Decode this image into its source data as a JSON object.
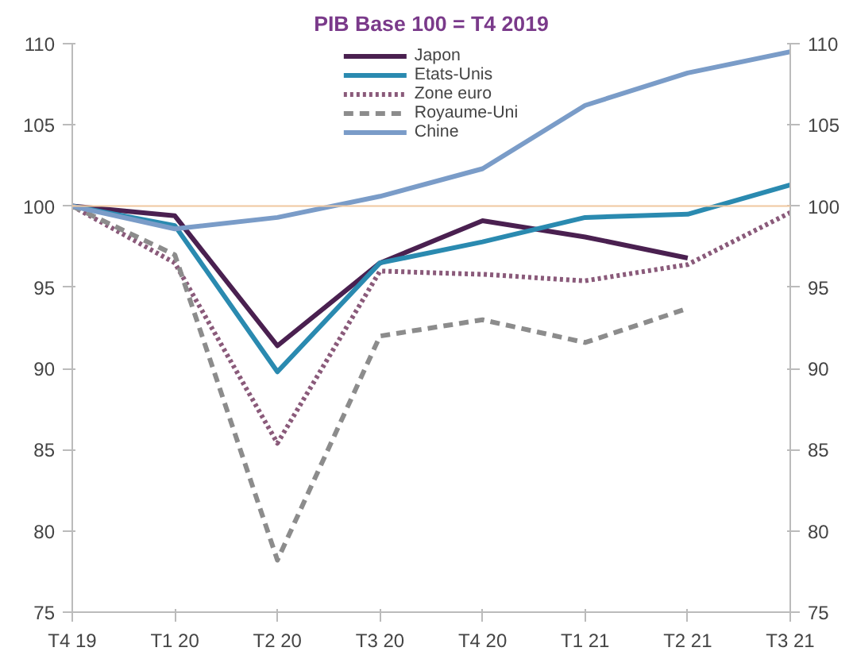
{
  "chart_data": {
    "type": "line",
    "title": "PIB Base 100 = T4 2019",
    "categories": [
      "T4 19",
      "T1 20",
      "T2 20",
      "T3 20",
      "T4 20",
      "T1 21",
      "T2 21",
      "T3 21"
    ],
    "series": [
      {
        "name": "Japon",
        "color": "#4a2050",
        "line_style": "solid",
        "values": [
          100,
          99.4,
          91.4,
          96.5,
          99.1,
          98.1,
          96.8,
          null
        ]
      },
      {
        "name": "Etats-Unis",
        "color": "#2a8ab0",
        "line_style": "solid",
        "values": [
          100,
          98.8,
          89.8,
          96.5,
          97.8,
          99.3,
          99.5,
          101.3
        ]
      },
      {
        "name": "Zone euro",
        "color": "#8a5a7a",
        "line_style": "dotted",
        "values": [
          100,
          96.5,
          85.4,
          96,
          95.8,
          95.4,
          96.4,
          99.6
        ]
      },
      {
        "name": "Royaume-Uni",
        "color": "#8c8c8c",
        "line_style": "dashed",
        "values": [
          100,
          97,
          78.2,
          92,
          93,
          91.6,
          93.7,
          null
        ]
      },
      {
        "name": "Chine",
        "color": "#7a9cc8",
        "line_style": "solid",
        "values": [
          100,
          98.6,
          99.3,
          100.6,
          102.3,
          106.2,
          108.2,
          109.5
        ]
      }
    ],
    "ylim": [
      75,
      110
    ],
    "yticks": [
      75,
      80,
      85,
      90,
      95,
      100,
      105,
      110
    ],
    "y2lim": [
      75,
      110
    ],
    "y2ticks": [
      75,
      80,
      85,
      90,
      95,
      100,
      105,
      110
    ],
    "ref_lines": [
      {
        "axis": "y",
        "value": 100,
        "color": "#f0c8a0"
      }
    ],
    "grid": false,
    "legend": "top",
    "marker": "none"
  }
}
